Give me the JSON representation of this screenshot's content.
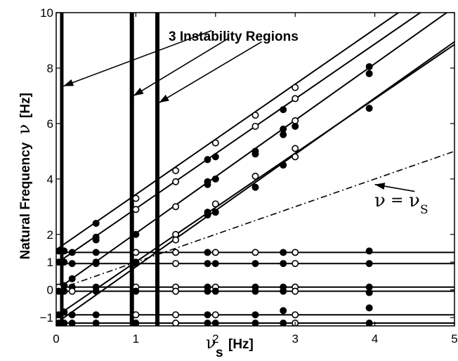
{
  "chart_data": {
    "type": "line",
    "title": "",
    "xlabel": "ν_s [Hz]",
    "ylabel": "Natural Frequency ν [Hz]",
    "ylabel_text": "Natural Frequency",
    "ylabel_symbol": "ν",
    "xlabel_symbol": "ν",
    "xlabel_subscript": "s",
    "xlabel_unit": "[Hz]",
    "ylabel_unit": "[Hz]",
    "xlim": [
      0,
      5
    ],
    "ylim": [
      -1.3,
      10
    ],
    "grid": false,
    "x_ticks": [
      0,
      1,
      2,
      3,
      4,
      5
    ],
    "y_ticks": [
      {
        "value": -1,
        "label": "−1"
      },
      {
        "value": 0,
        "label": "0"
      },
      {
        "value": 1,
        "label": "1"
      },
      {
        "value": 2,
        "label": "2"
      },
      {
        "value": 4,
        "label": "4"
      },
      {
        "value": 6,
        "label": "6"
      },
      {
        "value": 8,
        "label": "8"
      },
      {
        "value": 10,
        "label": "10"
      }
    ],
    "diagonal_lines": [
      {
        "intercept": 1.45,
        "slope": 1.99
      },
      {
        "intercept": 0.95,
        "slope": 1.98
      },
      {
        "intercept": 0.0,
        "slope": 2.04
      },
      {
        "intercept": -0.95,
        "slope": 1.96
      },
      {
        "intercept": -1.2,
        "slope": 2.03
      }
    ],
    "horizontal_lines": [
      1.35,
      0.95,
      0.1,
      -0.05,
      -0.9,
      -1.2
    ],
    "reference_line": {
      "name": "ν = ν_s",
      "slope": 1,
      "style": "dash-dot"
    },
    "instability_regions": [
      0.07,
      0.95,
      1.27
    ],
    "annotation": {
      "text": "3 Instability Regions",
      "targets": [
        {
          "from": [
            1.95,
            9.35
          ],
          "to": [
            0.09,
            7.35
          ]
        },
        {
          "from": [
            2.15,
            9.05
          ],
          "to": [
            0.97,
            7.0
          ]
        },
        {
          "from": [
            2.58,
            8.95
          ],
          "to": [
            1.29,
            6.75
          ]
        }
      ]
    },
    "ref_label": {
      "lhs": "ν",
      "rhs": "ν",
      "rhs_sub": "S",
      "equals": "=",
      "arrow_from": [
        4.5,
        3.55
      ],
      "arrow_to": [
        4.0,
        3.8
      ]
    },
    "points": [
      {
        "x": 0.03,
        "y": 1.4,
        "filled": true
      },
      {
        "x": 0.03,
        "y": 1.0,
        "filled": true
      },
      {
        "x": 0.03,
        "y": 0.1,
        "filled": false
      },
      {
        "x": 0.03,
        "y": -0.05,
        "filled": true
      },
      {
        "x": 0.03,
        "y": -0.9,
        "filled": true
      },
      {
        "x": 0.03,
        "y": -1.2,
        "filled": true
      },
      {
        "x": 0.1,
        "y": 1.4,
        "filled": true
      },
      {
        "x": 0.1,
        "y": 1.0,
        "filled": true
      },
      {
        "x": 0.1,
        "y": 0.15,
        "filled": true
      },
      {
        "x": 0.1,
        "y": -0.05,
        "filled": true
      },
      {
        "x": 0.1,
        "y": -0.8,
        "filled": true
      },
      {
        "x": 0.1,
        "y": -1.2,
        "filled": true
      },
      {
        "x": 0.2,
        "y": 1.35,
        "filled": true
      },
      {
        "x": 0.2,
        "y": 0.95,
        "filled": true
      },
      {
        "x": 0.2,
        "y": 0.4,
        "filled": true
      },
      {
        "x": 0.2,
        "y": 0.1,
        "filled": true
      },
      {
        "x": 0.2,
        "y": -0.05,
        "filled": false
      },
      {
        "x": 0.2,
        "y": -0.9,
        "filled": true
      },
      {
        "x": 0.2,
        "y": -1.2,
        "filled": true
      },
      {
        "x": 0.5,
        "y": 2.4,
        "filled": true
      },
      {
        "x": 0.5,
        "y": 1.9,
        "filled": true
      },
      {
        "x": 0.5,
        "y": 1.8,
        "filled": true
      },
      {
        "x": 0.5,
        "y": 1.35,
        "filled": true
      },
      {
        "x": 0.5,
        "y": 0.95,
        "filled": true
      },
      {
        "x": 0.5,
        "y": 1.0,
        "filled": true
      },
      {
        "x": 0.5,
        "y": 0.1,
        "filled": true
      },
      {
        "x": 0.5,
        "y": -0.05,
        "filled": true
      },
      {
        "x": 0.5,
        "y": -0.9,
        "filled": true
      },
      {
        "x": 0.5,
        "y": -1.2,
        "filled": true
      },
      {
        "x": 1.0,
        "y": 3.3,
        "filled": false
      },
      {
        "x": 1.0,
        "y": 2.9,
        "filled": false
      },
      {
        "x": 1.0,
        "y": 2.0,
        "filled": true
      },
      {
        "x": 1.0,
        "y": 1.0,
        "filled": true
      },
      {
        "x": 1.0,
        "y": 1.35,
        "filled": false
      },
      {
        "x": 1.0,
        "y": 0.95,
        "filled": true
      },
      {
        "x": 1.0,
        "y": 0.1,
        "filled": false
      },
      {
        "x": 1.0,
        "y": -0.05,
        "filled": true
      },
      {
        "x": 1.0,
        "y": -0.9,
        "filled": false
      },
      {
        "x": 1.0,
        "y": -1.2,
        "filled": true
      },
      {
        "x": 1.5,
        "y": 4.3,
        "filled": false
      },
      {
        "x": 1.5,
        "y": 3.9,
        "filled": false
      },
      {
        "x": 1.5,
        "y": 3.0,
        "filled": false
      },
      {
        "x": 1.5,
        "y": 2.0,
        "filled": false
      },
      {
        "x": 1.5,
        "y": 1.8,
        "filled": false
      },
      {
        "x": 1.5,
        "y": 1.35,
        "filled": false
      },
      {
        "x": 1.5,
        "y": 0.95,
        "filled": false
      },
      {
        "x": 1.5,
        "y": 0.1,
        "filled": false
      },
      {
        "x": 1.5,
        "y": -0.05,
        "filled": false
      },
      {
        "x": 1.5,
        "y": -0.9,
        "filled": false
      },
      {
        "x": 1.5,
        "y": -1.2,
        "filled": false
      },
      {
        "x": 1.9,
        "y": 4.7,
        "filled": true
      },
      {
        "x": 1.9,
        "y": 3.8,
        "filled": true
      },
      {
        "x": 1.9,
        "y": 3.9,
        "filled": true
      },
      {
        "x": 1.9,
        "y": 2.7,
        "filled": true
      },
      {
        "x": 1.9,
        "y": 2.8,
        "filled": true
      },
      {
        "x": 1.9,
        "y": 1.35,
        "filled": true
      },
      {
        "x": 1.9,
        "y": 0.95,
        "filled": true
      },
      {
        "x": 1.9,
        "y": 0.1,
        "filled": true
      },
      {
        "x": 1.9,
        "y": -0.05,
        "filled": true
      },
      {
        "x": 1.9,
        "y": -0.9,
        "filled": true
      },
      {
        "x": 1.9,
        "y": -1.2,
        "filled": true
      },
      {
        "x": 2.0,
        "y": 5.3,
        "filled": false
      },
      {
        "x": 2.0,
        "y": 4.8,
        "filled": true
      },
      {
        "x": 2.0,
        "y": 4.0,
        "filled": true
      },
      {
        "x": 2.0,
        "y": 3.1,
        "filled": false
      },
      {
        "x": 2.0,
        "y": 2.8,
        "filled": true
      },
      {
        "x": 2.0,
        "y": 1.35,
        "filled": false
      },
      {
        "x": 2.0,
        "y": 0.95,
        "filled": true
      },
      {
        "x": 2.0,
        "y": 0.1,
        "filled": false
      },
      {
        "x": 2.0,
        "y": -0.05,
        "filled": true
      },
      {
        "x": 2.0,
        "y": -0.9,
        "filled": false
      },
      {
        "x": 2.0,
        "y": -1.2,
        "filled": true
      },
      {
        "x": 2.5,
        "y": 6.3,
        "filled": false
      },
      {
        "x": 2.5,
        "y": 5.9,
        "filled": false
      },
      {
        "x": 2.5,
        "y": 5.0,
        "filled": true
      },
      {
        "x": 2.5,
        "y": 4.9,
        "filled": true
      },
      {
        "x": 2.5,
        "y": 4.1,
        "filled": false
      },
      {
        "x": 2.5,
        "y": 3.7,
        "filled": true
      },
      {
        "x": 2.5,
        "y": 1.35,
        "filled": false
      },
      {
        "x": 2.5,
        "y": 0.95,
        "filled": true
      },
      {
        "x": 2.5,
        "y": 0.1,
        "filled": true
      },
      {
        "x": 2.5,
        "y": -0.05,
        "filled": true
      },
      {
        "x": 2.5,
        "y": -0.9,
        "filled": true
      },
      {
        "x": 2.5,
        "y": -1.2,
        "filled": true
      },
      {
        "x": 2.85,
        "y": 6.5,
        "filled": true
      },
      {
        "x": 2.85,
        "y": 5.8,
        "filled": true
      },
      {
        "x": 2.85,
        "y": 5.6,
        "filled": true
      },
      {
        "x": 2.85,
        "y": 4.5,
        "filled": true
      },
      {
        "x": 2.85,
        "y": 1.35,
        "filled": true
      },
      {
        "x": 2.85,
        "y": 0.95,
        "filled": true
      },
      {
        "x": 2.85,
        "y": 0.1,
        "filled": true
      },
      {
        "x": 2.85,
        "y": -0.05,
        "filled": true
      },
      {
        "x": 2.85,
        "y": -0.75,
        "filled": true
      },
      {
        "x": 2.85,
        "y": -1.2,
        "filled": true
      },
      {
        "x": 3.0,
        "y": 7.3,
        "filled": false
      },
      {
        "x": 3.0,
        "y": 6.9,
        "filled": false
      },
      {
        "x": 3.0,
        "y": 6.1,
        "filled": false
      },
      {
        "x": 3.0,
        "y": 5.9,
        "filled": true
      },
      {
        "x": 3.0,
        "y": 5.1,
        "filled": false
      },
      {
        "x": 3.0,
        "y": 4.8,
        "filled": false
      },
      {
        "x": 3.0,
        "y": 1.35,
        "filled": false
      },
      {
        "x": 3.0,
        "y": 0.95,
        "filled": false
      },
      {
        "x": 3.0,
        "y": 0.1,
        "filled": false
      },
      {
        "x": 3.0,
        "y": -0.05,
        "filled": false
      },
      {
        "x": 3.0,
        "y": -0.9,
        "filled": false
      },
      {
        "x": 3.0,
        "y": -1.2,
        "filled": false
      },
      {
        "x": 3.93,
        "y": 8.05,
        "filled": true
      },
      {
        "x": 3.93,
        "y": 7.8,
        "filled": true
      },
      {
        "x": 3.93,
        "y": 6.55,
        "filled": true
      },
      {
        "x": 3.93,
        "y": 1.4,
        "filled": true
      },
      {
        "x": 3.93,
        "y": 0.95,
        "filled": true
      },
      {
        "x": 3.93,
        "y": 0.1,
        "filled": true
      },
      {
        "x": 3.93,
        "y": -0.1,
        "filled": true
      },
      {
        "x": 3.93,
        "y": -0.65,
        "filled": true
      },
      {
        "x": 3.93,
        "y": -1.2,
        "filled": true
      }
    ]
  }
}
